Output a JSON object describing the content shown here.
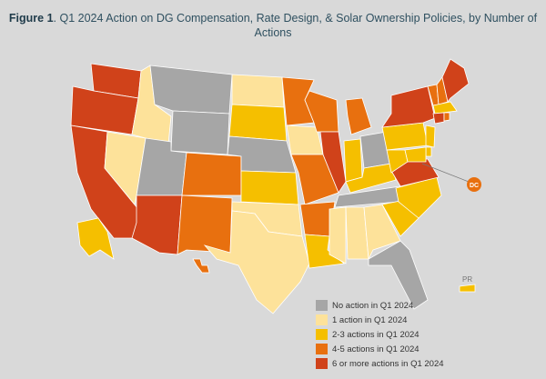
{
  "title": {
    "bold": "Figure 1",
    "rest": ". Q1 2024 Action on DG Compensation, Rate Design, & Solar Ownership Policies, by Number of Actions"
  },
  "colors": {
    "none": "#a6a6a6",
    "one": "#fde29a",
    "two_three": "#f5bf00",
    "four_five": "#e8700f",
    "six_plus": "#d0421a"
  },
  "legend": [
    {
      "key": "none",
      "label": "No action in Q1 2024"
    },
    {
      "key": "one",
      "label": "1 action in Q1 2024"
    },
    {
      "key": "two_three",
      "label": "2-3 actions in Q1 2024"
    },
    {
      "key": "four_five",
      "label": "4-5 actions in Q1 2024"
    },
    {
      "key": "six_plus",
      "label": "6 or more actions in Q1 2024"
    }
  ],
  "labels": {
    "dc": "DC",
    "pr": "PR"
  },
  "states": {
    "WA": "six_plus",
    "OR": "six_plus",
    "CA": "six_plus",
    "AZ": "six_plus",
    "NV": "one",
    "ID": "one",
    "MT": "none",
    "WY": "none",
    "UT": "none",
    "CO": "four_five",
    "NM": "four_five",
    "ND": "one",
    "SD": "two_three",
    "NE": "none",
    "KS": "two_three",
    "OK": "one",
    "TX": "one",
    "MN": "four_five",
    "IA": "one",
    "MO": "four_five",
    "AR": "four_five",
    "LA": "two_three",
    "WI": "four_five",
    "IL": "six_plus",
    "MI": "four_five",
    "IN": "two_three",
    "OH": "none",
    "KY": "two_three",
    "TN": "none",
    "MS": "one",
    "AL": "one",
    "GA": "one",
    "FL": "none",
    "SC": "two_three",
    "NC": "two_three",
    "VA": "six_plus",
    "WV": "two_three",
    "PA": "two_three",
    "NY": "six_plus",
    "VT": "four_five",
    "NH": "four_five",
    "ME": "six_plus",
    "MA": "two_three",
    "CT": "six_plus",
    "RI": "four_five",
    "NJ": "two_three",
    "DE": "two_three",
    "MD": "two_three",
    "DC": "four_five",
    "AK": "two_three",
    "HI": "four_five",
    "PR": "two_three"
  }
}
